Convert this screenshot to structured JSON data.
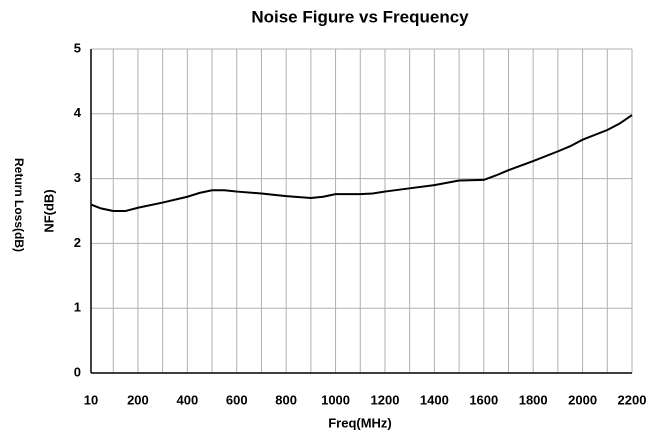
{
  "chart_data": {
    "type": "line",
    "title": "Noise Figure vs Frequency",
    "x_label": "Freq(MHz)",
    "y_label": "NF(dB)",
    "y_outer_label": "Return Loss(dB)",
    "xlim": [
      10,
      2200
    ],
    "ylim": [
      0,
      5
    ],
    "xticks": [
      10,
      200,
      400,
      600,
      800,
      1000,
      1200,
      1400,
      1600,
      1800,
      2000,
      2200
    ],
    "xminor_ticks": [
      100,
      300,
      500,
      700,
      900,
      1100,
      1300,
      1500,
      1700,
      1900,
      2100
    ],
    "yticks": [
      0,
      1,
      2,
      3,
      4,
      5
    ],
    "grid": true,
    "series": [
      {
        "name": "NF",
        "color": "#000000",
        "x": [
          10,
          50,
          100,
          150,
          200,
          300,
          400,
          450,
          500,
          550,
          600,
          700,
          800,
          900,
          950,
          1000,
          1100,
          1150,
          1200,
          1300,
          1400,
          1500,
          1600,
          1650,
          1700,
          1800,
          1900,
          1950,
          2000,
          2100,
          2150,
          2200
        ],
        "values": [
          2.6,
          2.54,
          2.5,
          2.5,
          2.55,
          2.63,
          2.72,
          2.78,
          2.82,
          2.82,
          2.8,
          2.77,
          2.73,
          2.7,
          2.72,
          2.76,
          2.76,
          2.77,
          2.8,
          2.85,
          2.9,
          2.97,
          2.98,
          3.05,
          3.13,
          3.27,
          3.42,
          3.5,
          3.6,
          3.75,
          3.85,
          3.98
        ]
      }
    ]
  }
}
